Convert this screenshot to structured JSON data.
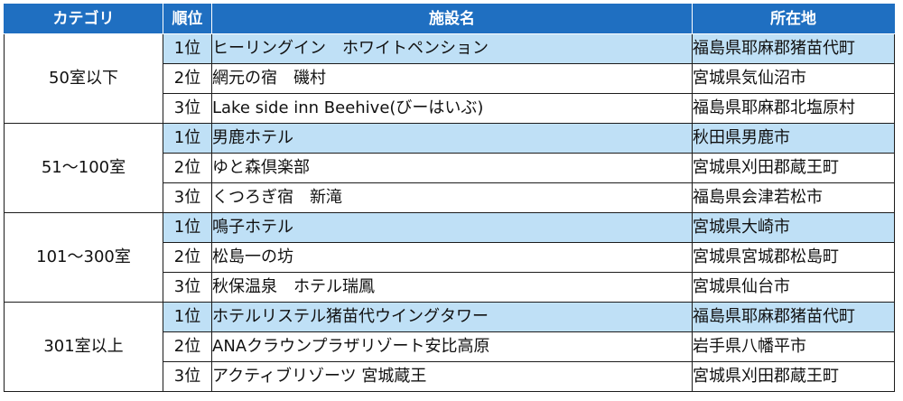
{
  "headers": {
    "category": "カテゴリ",
    "rank": "順位",
    "facility": "施設名",
    "location": "所在地"
  },
  "colors": {
    "header_bg": "#1f6fc1",
    "first_rank_bg": "#bfe0f6",
    "border": "#1c1c1c"
  },
  "groups": [
    {
      "category": "50室以下",
      "rows": [
        {
          "rank": "1位",
          "facility": "ヒーリングイン　ホワイトペンション",
          "location": "福島県耶麻郡猪苗代町"
        },
        {
          "rank": "2位",
          "facility": "網元の宿　磯村",
          "location": "宮城県気仙沼市"
        },
        {
          "rank": "3位",
          "facility": "Lake side inn Beehive(びーはいぶ)",
          "location": "福島県耶麻郡北塩原村"
        }
      ]
    },
    {
      "category": "51～100室",
      "rows": [
        {
          "rank": "1位",
          "facility": "男鹿ホテル",
          "location": "秋田県男鹿市"
        },
        {
          "rank": "2位",
          "facility": "ゆと森倶楽部",
          "location": "宮城県刈田郡蔵王町"
        },
        {
          "rank": "3位",
          "facility": "くつろぎ宿　新滝",
          "location": "福島県会津若松市"
        }
      ]
    },
    {
      "category": "101～300室",
      "rows": [
        {
          "rank": "1位",
          "facility": "鳴子ホテル",
          "location": "宮城県大崎市"
        },
        {
          "rank": "2位",
          "facility": "松島一の坊",
          "location": "宮城県宮城郡松島町"
        },
        {
          "rank": "3位",
          "facility": "秋保温泉　ホテル瑞鳳",
          "location": "宮城県仙台市"
        }
      ]
    },
    {
      "category": "301室以上",
      "rows": [
        {
          "rank": "1位",
          "facility": "ホテルリステル猪苗代ウイングタワー",
          "location": "福島県耶麻郡猪苗代町"
        },
        {
          "rank": "2位",
          "facility": "ANAクラウンプラザリゾート安比高原",
          "location": "岩手県八幡平市"
        },
        {
          "rank": "3位",
          "facility": "アクティブリゾーツ 宮城蔵王",
          "location": "宮城県刈田郡蔵王町"
        }
      ]
    }
  ]
}
